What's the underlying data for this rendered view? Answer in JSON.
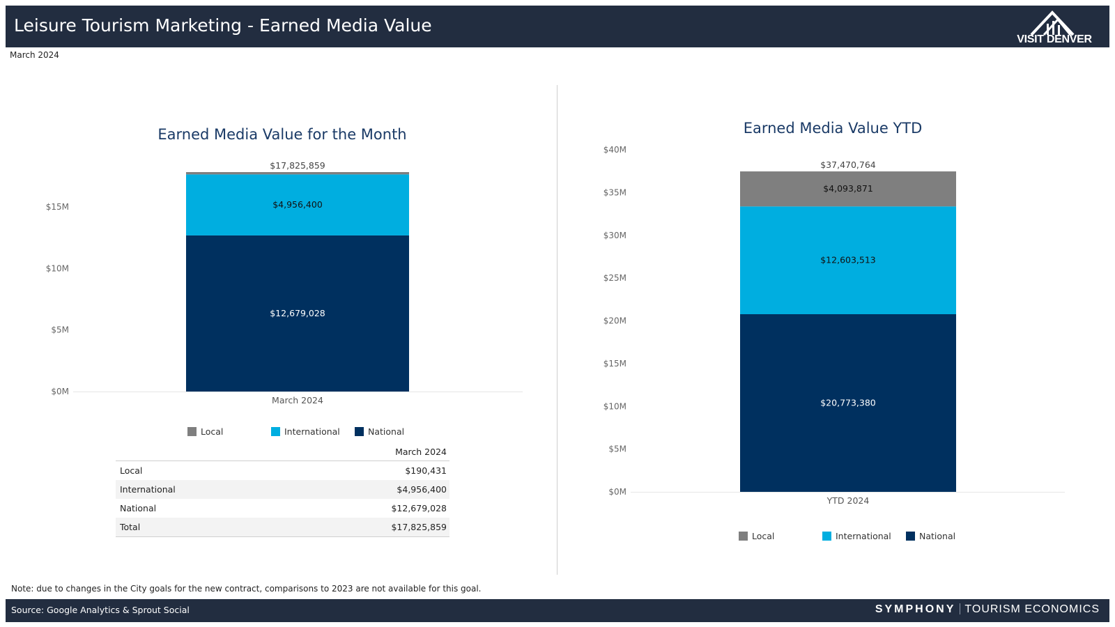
{
  "header": {
    "title": "Leisure Tourism Marketing - Earned Media Value",
    "logo_text": "VISIT DENVER"
  },
  "subtitle": "March 2024",
  "colors": {
    "local": "#7f7f7f",
    "international": "#00aee0",
    "national": "#00305f",
    "header_bg": "#222d40"
  },
  "legend": [
    {
      "label": "Local",
      "color": "#7f7f7f"
    },
    {
      "label": "International",
      "color": "#00aee0"
    },
    {
      "label": "National",
      "color": "#00305f"
    }
  ],
  "chart_data": [
    {
      "type": "bar",
      "stacked": true,
      "title": "Earned Media Value for the Month",
      "categories": [
        "March 2024"
      ],
      "series": [
        {
          "name": "National",
          "values": [
            12679028
          ],
          "label": "$12,679,028"
        },
        {
          "name": "International",
          "values": [
            4956400
          ],
          "label": "$4,956,400"
        },
        {
          "name": "Local",
          "values": [
            190431
          ],
          "label": ""
        }
      ],
      "total": 17825859,
      "total_label": "$17,825,859",
      "ylim": [
        0,
        17825859
      ],
      "yticks": [
        0,
        5000000,
        10000000,
        15000000
      ],
      "ytick_labels": [
        "$0M",
        "$5M",
        "$10M",
        "$15M"
      ],
      "legend_position": "bottom"
    },
    {
      "type": "bar",
      "stacked": true,
      "title": "Earned Media Value YTD",
      "categories": [
        "YTD 2024"
      ],
      "series": [
        {
          "name": "National",
          "values": [
            20773380
          ],
          "label": "$20,773,380"
        },
        {
          "name": "International",
          "values": [
            12603513
          ],
          "label": "$12,603,513"
        },
        {
          "name": "Local",
          "values": [
            4093871
          ],
          "label": "$4,093,871"
        }
      ],
      "total": 37470764,
      "total_label": "$37,470,764",
      "ylim": [
        0,
        40000000
      ],
      "yticks": [
        0,
        5000000,
        10000000,
        15000000,
        20000000,
        25000000,
        30000000,
        35000000,
        40000000
      ],
      "ytick_labels": [
        "$0M",
        "$5M",
        "$10M",
        "$15M",
        "$20M",
        "$25M",
        "$30M",
        "$35M",
        "$40M"
      ],
      "legend_position": "bottom"
    }
  ],
  "table": {
    "column_header": "March 2024",
    "rows": [
      {
        "label": "Local",
        "value": "$190,431"
      },
      {
        "label": "International",
        "value": "$4,956,400"
      },
      {
        "label": "National",
        "value": "$12,679,028"
      },
      {
        "label": "Total",
        "value": "$17,825,859"
      }
    ]
  },
  "note": "Note: due to changes in the City goals for the new contract, comparisons to 2023 are not available for this goal.",
  "footer": {
    "source": "Source: Google Analytics & Sprout Social",
    "brand_primary": "SYMPHONY",
    "brand_secondary": "TOURISM ECONOMICS"
  }
}
